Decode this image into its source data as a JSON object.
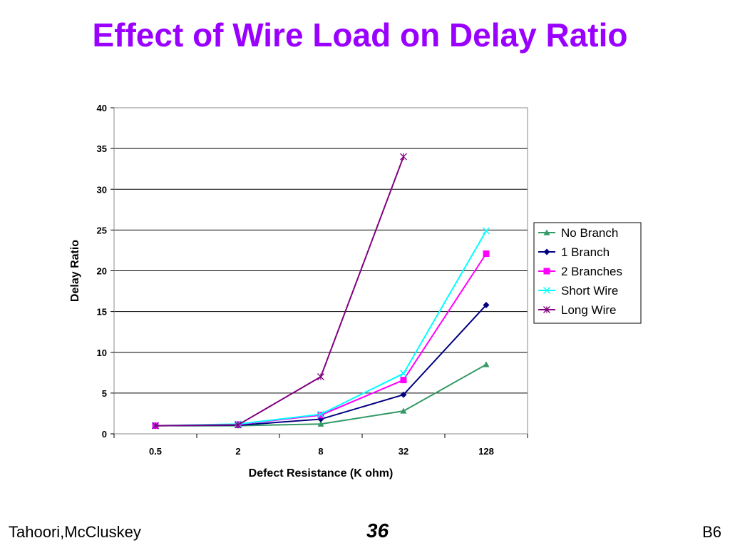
{
  "slide": {
    "title": "Effect of Wire Load on Delay Ratio",
    "footer_left": "Tahoori,McCluskey",
    "page_number": "36",
    "footer_right": "B6"
  },
  "chart_data": {
    "type": "line",
    "title": "",
    "xlabel": "Defect Resistance (K ohm)",
    "ylabel": "Delay Ratio",
    "categories": [
      "0.5",
      "2",
      "8",
      "32",
      "128"
    ],
    "ylim": [
      0,
      40
    ],
    "yticks": [
      0,
      5,
      10,
      15,
      20,
      25,
      30,
      35,
      40
    ],
    "grid": "horizontal",
    "legend_position": "right",
    "series": [
      {
        "name": "No Branch",
        "color": "#339966",
        "marker": "triangle",
        "values": [
          1,
          1,
          1.2,
          2.8,
          8.5
        ]
      },
      {
        "name": "1 Branch",
        "color": "#000080",
        "marker": "diamond",
        "values": [
          1,
          1.05,
          1.8,
          4.8,
          15.8
        ]
      },
      {
        "name": "2 Branches",
        "color": "#ff00ff",
        "marker": "square",
        "values": [
          1,
          1.15,
          2.3,
          6.6,
          22.1
        ]
      },
      {
        "name": "Short Wire",
        "color": "#00ffff",
        "marker": "x",
        "values": [
          1,
          1.2,
          2.4,
          7.4,
          24.9
        ]
      },
      {
        "name": "Long Wire",
        "color": "#800080",
        "marker": "star",
        "values": [
          1,
          1.1,
          7,
          34,
          null
        ]
      }
    ]
  }
}
